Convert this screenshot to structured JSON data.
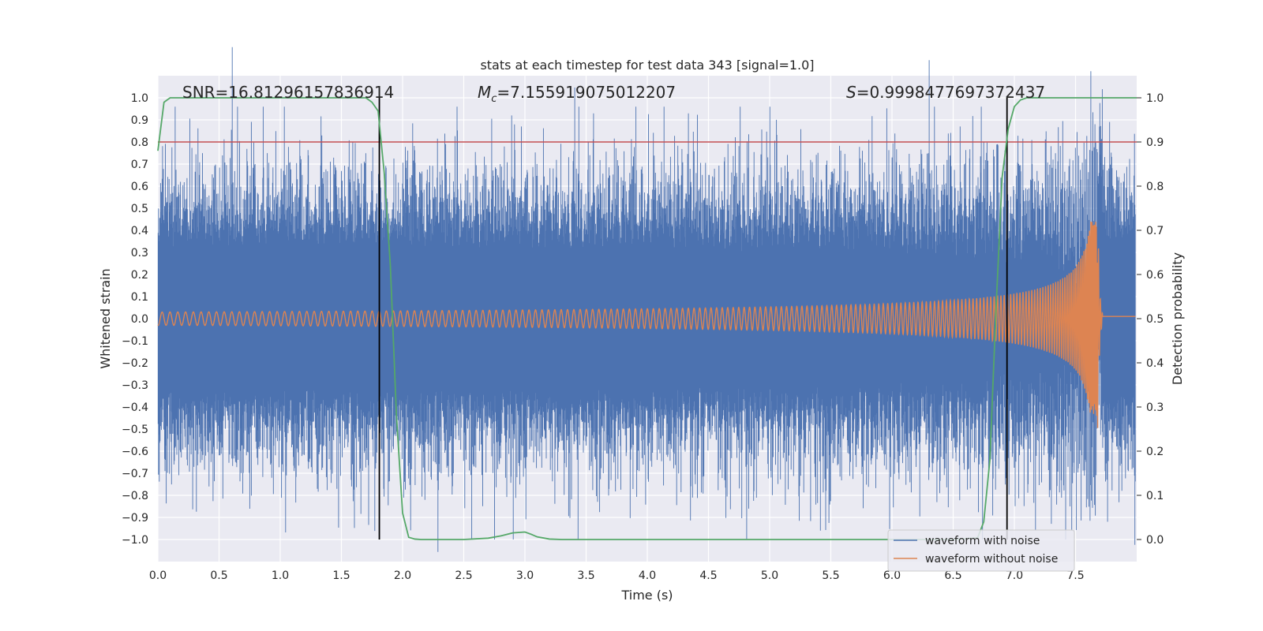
{
  "chart_data": {
    "type": "line",
    "title": "stats at each timestep for test data 343 [signal=1.0]",
    "xlabel": "Time (s)",
    "ylabel": "Whitened strain",
    "y2label": "Detection probability",
    "xlim": [
      0.0,
      8.0
    ],
    "ylim": [
      -1.1,
      1.1
    ],
    "y2lim": [
      -0.05,
      1.05
    ],
    "x_ticks": [
      "0.0",
      "0.5",
      "1.0",
      "1.5",
      "2.0",
      "2.5",
      "3.0",
      "3.5",
      "4.0",
      "4.5",
      "5.0",
      "5.5",
      "6.0",
      "6.5",
      "7.0",
      "7.5"
    ],
    "y_ticks": [
      "1.0",
      "0.9",
      "0.8",
      "0.7",
      "0.6",
      "0.5",
      "0.4",
      "0.3",
      "0.2",
      "0.1",
      "0.0",
      "-0.1",
      "-0.2",
      "-0.3",
      "-0.4",
      "-0.5",
      "-0.6",
      "-0.7",
      "-0.8",
      "-0.9",
      "-1.0"
    ],
    "y2_ticks": [
      "1.0",
      "0.9",
      "0.8",
      "0.7",
      "0.6",
      "0.5",
      "0.4",
      "0.3",
      "0.2",
      "0.1",
      "0.0"
    ],
    "grid": true,
    "annotations": {
      "snr": "SNR=16.81296157836914",
      "mc_symbol": "M",
      "mc_sub": "c",
      "mc_value": "=7.155919075012207",
      "s_symbol": "S",
      "s_value": "=0.9998477697372437"
    },
    "threshold": {
      "y": 0.9,
      "axis": "right",
      "color": "#c44e52"
    },
    "vertical_lines": {
      "x": [
        1.81,
        6.94
      ],
      "color": "#000000"
    },
    "series": [
      {
        "name": "waveform with noise",
        "color": "#4c72b0",
        "axis": "left",
        "description_points": {
          "approx_envelope": [
            0.65,
            -0.65
          ],
          "peak_max": 0.96,
          "peak_min": -1.0
        }
      },
      {
        "name": "waveform without noise",
        "color": "#dd8452",
        "axis": "left",
        "chirp": {
          "start": 0.0,
          "merger": 7.68,
          "initial_amplitude": 0.03,
          "peak_amplitude": 0.44,
          "peak_negative": -0.59,
          "ringdown_end": 7.72
        }
      },
      {
        "name": "",
        "color": "#55a868",
        "axis": "right",
        "x": [
          0.0,
          0.05,
          0.1,
          0.15,
          0.2,
          0.5,
          1.0,
          1.5,
          1.7,
          1.75,
          1.8,
          1.85,
          1.9,
          1.95,
          2.0,
          2.05,
          2.1,
          2.15,
          2.2,
          2.5,
          2.7,
          2.8,
          2.9,
          3.0,
          3.05,
          3.1,
          3.2,
          3.3,
          4.0,
          5.0,
          6.0,
          6.5,
          6.7,
          6.75,
          6.8,
          6.85,
          6.9,
          6.95,
          7.0,
          7.05,
          7.1,
          7.2,
          8.0
        ],
        "y": [
          0.88,
          0.99,
          1.0,
          1.0,
          1.0,
          1.0,
          1.0,
          1.0,
          1.0,
          0.99,
          0.97,
          0.83,
          0.62,
          0.28,
          0.06,
          0.005,
          0.001,
          0.0,
          0.0,
          0.0,
          0.003,
          0.008,
          0.015,
          0.017,
          0.012,
          0.006,
          0.001,
          0.0,
          0.0,
          0.0,
          0.0,
          0.0,
          0.004,
          0.04,
          0.18,
          0.52,
          0.82,
          0.93,
          0.98,
          0.995,
          1.0,
          1.0,
          1.0
        ]
      }
    ],
    "legend": {
      "placement": "lower-right",
      "entries": [
        "waveform with noise",
        "waveform without noise"
      ]
    }
  }
}
